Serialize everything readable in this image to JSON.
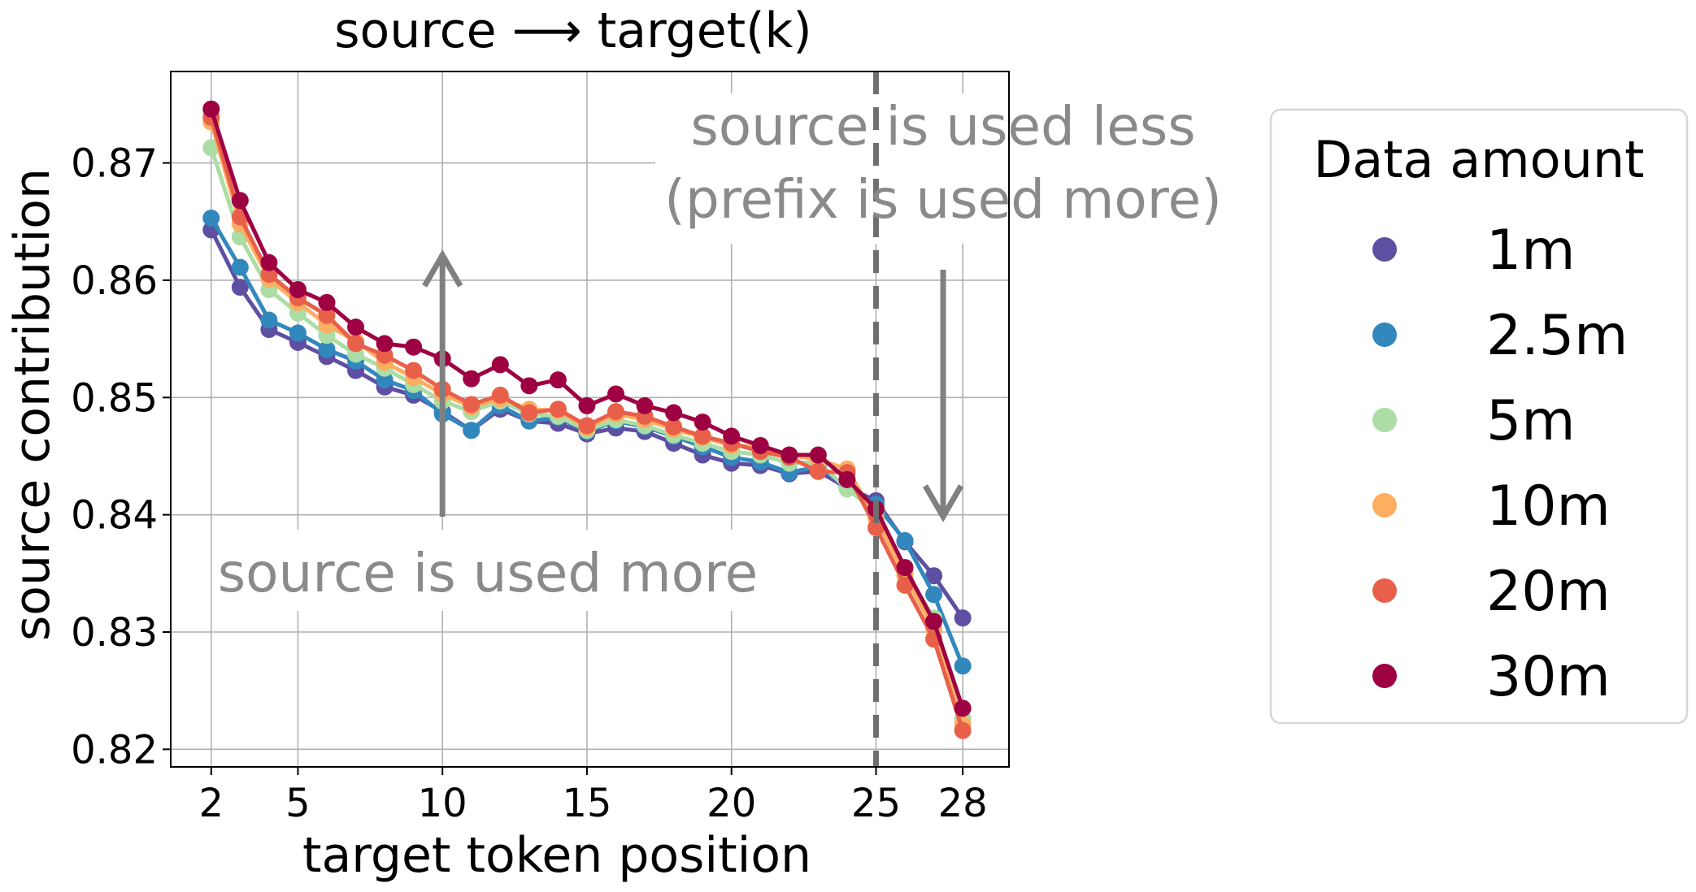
{
  "chart_data": {
    "type": "line",
    "title": "source ⟶ target(k)",
    "xlabel": "target token position",
    "ylabel": "source contribution",
    "xlim": [
      0.6,
      29.6
    ],
    "ylim": [
      0.8185,
      0.8778
    ],
    "xticks": [
      2,
      5,
      10,
      15,
      20,
      25,
      28
    ],
    "yticks": [
      0.82,
      0.83,
      0.84,
      0.85,
      0.86,
      0.87
    ],
    "ytick_labels": [
      "0.82",
      "0.83",
      "0.84",
      "0.85",
      "0.86",
      "0.87"
    ],
    "grid": true,
    "x": [
      2,
      3,
      4,
      5,
      6,
      7,
      8,
      9,
      10,
      11,
      12,
      13,
      14,
      15,
      16,
      17,
      18,
      19,
      20,
      21,
      22,
      23,
      24,
      25,
      26,
      27,
      28
    ],
    "series": [
      {
        "name": "1m",
        "color": "#5e4fa2",
        "values": [
          0.8643,
          0.8594,
          0.8558,
          0.8547,
          0.8535,
          0.8523,
          0.8509,
          0.8502,
          0.8488,
          0.8472,
          0.849,
          0.848,
          0.8478,
          0.8469,
          0.8474,
          0.8471,
          0.8461,
          0.8451,
          0.8444,
          0.8442,
          0.8435,
          0.8437,
          0.8423,
          0.8412,
          0.8377,
          0.8348,
          0.8312
        ]
      },
      {
        "name": "2.5m",
        "color": "#3288bd",
        "values": [
          0.8653,
          0.8611,
          0.8566,
          0.8555,
          0.8541,
          0.8531,
          0.8515,
          0.8506,
          0.8486,
          0.8472,
          0.8493,
          0.848,
          0.8483,
          0.8471,
          0.848,
          0.8475,
          0.8467,
          0.8458,
          0.8449,
          0.8445,
          0.8436,
          0.8441,
          0.8424,
          0.8409,
          0.8378,
          0.8332,
          0.8271
        ]
      },
      {
        "name": "5m",
        "color": "#abdda4",
        "values": [
          0.8713,
          0.8637,
          0.8592,
          0.8572,
          0.8553,
          0.8537,
          0.8525,
          0.8511,
          0.8497,
          0.8488,
          0.8497,
          0.8486,
          0.8484,
          0.8472,
          0.8481,
          0.8476,
          0.8468,
          0.8461,
          0.8454,
          0.8451,
          0.8444,
          0.8445,
          0.8422,
          0.8403,
          0.8352,
          0.8312,
          0.8226
        ]
      },
      {
        "name": "10m",
        "color": "#fdae61",
        "values": [
          0.8735,
          0.8648,
          0.8601,
          0.8581,
          0.8562,
          0.8548,
          0.853,
          0.8517,
          0.8503,
          0.8492,
          0.8499,
          0.849,
          0.8489,
          0.8474,
          0.8486,
          0.8481,
          0.8473,
          0.8466,
          0.8459,
          0.8458,
          0.8451,
          0.8447,
          0.8439,
          0.8397,
          0.8348,
          0.8302,
          0.8221
        ]
      },
      {
        "name": "20m",
        "color": "#e8604a",
        "values": [
          0.8739,
          0.8654,
          0.8605,
          0.8585,
          0.857,
          0.8546,
          0.8536,
          0.8523,
          0.8507,
          0.8494,
          0.8502,
          0.8487,
          0.849,
          0.8476,
          0.8488,
          0.8484,
          0.8475,
          0.8467,
          0.8461,
          0.8454,
          0.8449,
          0.8437,
          0.8436,
          0.8389,
          0.834,
          0.8294,
          0.8216
        ]
      },
      {
        "name": "30m",
        "color": "#9e0142",
        "values": [
          0.8746,
          0.8668,
          0.8615,
          0.8592,
          0.8581,
          0.856,
          0.8546,
          0.8543,
          0.8533,
          0.8516,
          0.8528,
          0.851,
          0.8515,
          0.8493,
          0.8503,
          0.8493,
          0.8487,
          0.8479,
          0.8467,
          0.8459,
          0.8451,
          0.8451,
          0.843,
          0.8405,
          0.8355,
          0.8309,
          0.8235
        ]
      }
    ],
    "vline": {
      "x": 25,
      "style": "dashed",
      "color": "#6e6e6e"
    },
    "annotations": [
      {
        "text": "source is used less",
        "text2": "(prefix is used more)",
        "arrow": "down"
      },
      {
        "text": "source is used more",
        "arrow": "up"
      }
    ],
    "legend": {
      "title": "Data amount",
      "placement": "right outside"
    }
  }
}
